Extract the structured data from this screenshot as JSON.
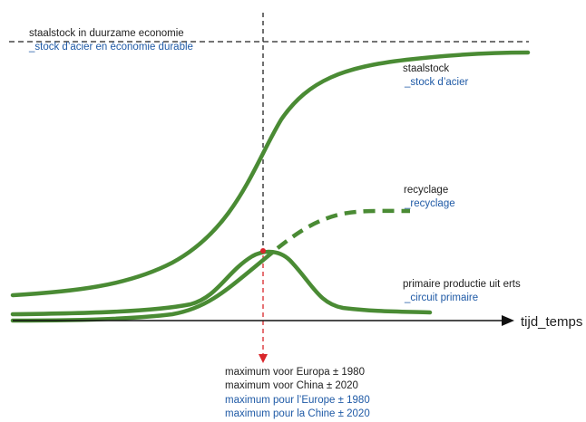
{
  "colors": {
    "curve": "#4a8b34",
    "text_nl": "#1e1e1e",
    "text_fr": "#1f5aa6",
    "guide": "#222222",
    "marker": "#d9262b"
  },
  "limit_line": {
    "label_nl": "staalstock in duurzame economie",
    "label_fr": "_stock d’acier en économie durable"
  },
  "curves": {
    "stock": {
      "label_nl": "staalstock",
      "label_fr": "_stock d’acier"
    },
    "recycling": {
      "label_nl": "recyclage",
      "label_fr": "_recyclage"
    },
    "primary": {
      "label_nl": "primaire productie uit erts",
      "label_fr": "_circuit primaire"
    }
  },
  "x_axis": {
    "label": "tijd_temps"
  },
  "maximum_notes": {
    "nl_europe": "maximum voor Europa ± 1980",
    "nl_china": "maximum voor China ± 2020",
    "fr_europe": "maximum pour l’Europe ± 1980",
    "fr_china": "maximum pour la Chine ± 2020"
  }
}
